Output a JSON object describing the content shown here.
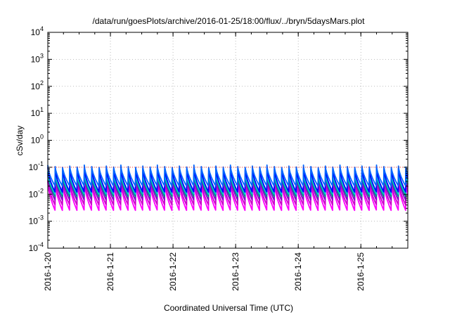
{
  "chart_data": {
    "type": "line",
    "title": "/data/run/goesPlots/archive/2016-01-25/18:00/flux/../bryn/5daysMars.plot",
    "xlabel": "Coordinated Universal Time (UTC)",
    "ylabel": "cSv/day",
    "yscale": "log",
    "ylim": [
      0.0001,
      10000
    ],
    "xlim": [
      "2016-01-20T00:00",
      "2016-01-25T18:00"
    ],
    "grid": true,
    "y_ticks": [
      {
        "base": "10",
        "exp": "4"
      },
      {
        "base": "10",
        "exp": "3"
      },
      {
        "base": "10",
        "exp": "2"
      },
      {
        "base": "10",
        "exp": "1"
      },
      {
        "base": "10",
        "exp": "0"
      },
      {
        "base": "10",
        "exp": "-1"
      },
      {
        "base": "10",
        "exp": "-2"
      },
      {
        "base": "10",
        "exp": "-3"
      },
      {
        "base": "10",
        "exp": "-4"
      }
    ],
    "x_ticks": [
      "2016-1-20",
      "2016-1-21",
      "2016-1-22",
      "2016-1-23",
      "2016-1-24",
      "2016-1-25"
    ],
    "reference_line": {
      "value": 0.1,
      "color": "#ff0000"
    },
    "sawtooth_period_hours": 2.8,
    "series": [
      {
        "color": "#ff00ff",
        "peak": 0.03,
        "trough": 0.0025
      },
      {
        "color": "#cc00cc",
        "peak": 0.035,
        "trough": 0.004
      },
      {
        "color": "#8800cc",
        "peak": 0.05,
        "trough": 0.006
      },
      {
        "color": "#008b8b",
        "peak": 0.06,
        "trough": 0.008
      },
      {
        "color": "#00cccc",
        "peak": 0.07,
        "trough": 0.01
      },
      {
        "color": "#0000ff",
        "peak": 0.1,
        "trough": 0.012
      },
      {
        "color": "#0066ff",
        "peak": 0.12,
        "trough": 0.02
      }
    ]
  }
}
